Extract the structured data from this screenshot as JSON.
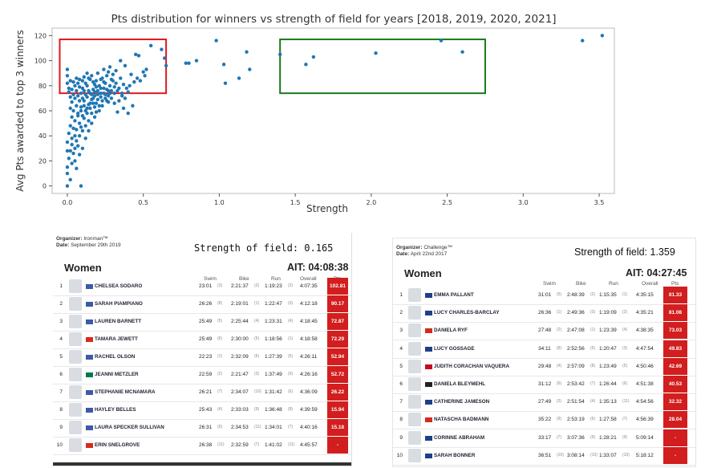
{
  "chart_data": {
    "type": "scatter",
    "title": "Pts distribution for winners vs strength of field for years [2018, 2019, 2020, 2021]",
    "xlabel": "Strength",
    "ylabel": "Avg Pts awarded to top 3 winners",
    "xlim": [
      -0.1,
      3.6
    ],
    "ylim": [
      -6,
      126
    ],
    "xticks": [
      "0.0",
      "0.5",
      "1.0",
      "1.5",
      "2.0",
      "2.5",
      "3.0",
      "3.5"
    ],
    "yticks": [
      "0",
      "20",
      "40",
      "60",
      "80",
      "100",
      "120"
    ],
    "grid": false,
    "point_color": "#1f77b4",
    "highlight_boxes": [
      {
        "color": "#e0191f",
        "x": [
          -0.05,
          0.65
        ],
        "y": [
          74,
          117
        ]
      },
      {
        "color": "#1a7a1a",
        "x": [
          1.4,
          2.75
        ],
        "y": [
          74,
          117
        ]
      }
    ],
    "points": [
      [
        0.55,
        112
      ],
      [
        0.62,
        109
      ],
      [
        0.64,
        102
      ],
      [
        0.65,
        96
      ],
      [
        0.45,
        105
      ],
      [
        0.47,
        104
      ],
      [
        0.5,
        91
      ],
      [
        0.52,
        93
      ],
      [
        0.42,
        89
      ],
      [
        0.46,
        86
      ],
      [
        0.39,
        78
      ],
      [
        0.4,
        75
      ],
      [
        0.36,
        72
      ],
      [
        0.37,
        62
      ],
      [
        0.31,
        66
      ],
      [
        0.33,
        59
      ],
      [
        0.38,
        96
      ],
      [
        0.35,
        100
      ],
      [
        0.32,
        92
      ],
      [
        0.28,
        95
      ],
      [
        0.26,
        88
      ],
      [
        0.24,
        93
      ],
      [
        0.2,
        90
      ],
      [
        0.23,
        86
      ],
      [
        0.19,
        84
      ],
      [
        0.18,
        81
      ],
      [
        0.15,
        85
      ],
      [
        0.13,
        80
      ],
      [
        0.12,
        82
      ],
      [
        0.11,
        76
      ],
      [
        0.1,
        78
      ],
      [
        0.09,
        74
      ],
      [
        0.08,
        79
      ],
      [
        0.07,
        72
      ],
      [
        0.06,
        76
      ],
      [
        0.05,
        70
      ],
      [
        0.04,
        73
      ],
      [
        0.03,
        67
      ],
      [
        0.02,
        71
      ],
      [
        0.01,
        75
      ],
      [
        0.0,
        82
      ],
      [
        0.0,
        88
      ],
      [
        0.0,
        93
      ],
      [
        0.01,
        78
      ],
      [
        0.02,
        62
      ],
      [
        0.03,
        55
      ],
      [
        0.02,
        48
      ],
      [
        0.01,
        42
      ],
      [
        0.0,
        35
      ],
      [
        0.0,
        28
      ],
      [
        0.01,
        22
      ],
      [
        0.0,
        15
      ],
      [
        0.0,
        10
      ],
      [
        0.02,
        5
      ],
      [
        0.0,
        0
      ],
      [
        0.09,
        0
      ],
      [
        0.04,
        60
      ],
      [
        0.05,
        52
      ],
      [
        0.06,
        45
      ],
      [
        0.07,
        58
      ],
      [
        0.08,
        50
      ],
      [
        0.09,
        63
      ],
      [
        0.1,
        56
      ],
      [
        0.11,
        68
      ],
      [
        0.12,
        60
      ],
      [
        0.13,
        71
      ],
      [
        0.14,
        65
      ],
      [
        0.15,
        74
      ],
      [
        0.16,
        69
      ],
      [
        0.17,
        77
      ],
      [
        0.18,
        72
      ],
      [
        0.2,
        76
      ],
      [
        0.21,
        80
      ],
      [
        0.22,
        74
      ],
      [
        0.24,
        78
      ],
      [
        0.25,
        82
      ],
      [
        0.27,
        76
      ],
      [
        0.28,
        80
      ],
      [
        0.3,
        84
      ],
      [
        0.31,
        79
      ],
      [
        0.29,
        70
      ],
      [
        0.26,
        68
      ],
      [
        0.23,
        64
      ],
      [
        0.21,
        60
      ],
      [
        0.19,
        66
      ],
      [
        0.16,
        58
      ],
      [
        0.14,
        52
      ],
      [
        0.12,
        48
      ],
      [
        0.1,
        44
      ],
      [
        0.08,
        40
      ],
      [
        0.06,
        36
      ],
      [
        0.05,
        30
      ],
      [
        0.04,
        26
      ],
      [
        0.03,
        38
      ],
      [
        0.07,
        32
      ],
      [
        0.09,
        47
      ],
      [
        0.11,
        54
      ],
      [
        0.13,
        62
      ],
      [
        0.15,
        66
      ],
      [
        0.17,
        70
      ],
      [
        0.18,
        63
      ],
      [
        0.2,
        69
      ],
      [
        0.22,
        71
      ],
      [
        0.25,
        73
      ],
      [
        0.27,
        67
      ],
      [
        0.34,
        78
      ],
      [
        0.29,
        85
      ],
      [
        0.32,
        82
      ],
      [
        0.35,
        86
      ],
      [
        0.3,
        89
      ],
      [
        0.27,
        91
      ],
      [
        0.24,
        83
      ],
      [
        0.22,
        85
      ],
      [
        0.19,
        79
      ],
      [
        0.17,
        83
      ],
      [
        0.16,
        88
      ],
      [
        0.14,
        86
      ],
      [
        0.13,
        90
      ],
      [
        0.11,
        87
      ],
      [
        0.1,
        84
      ],
      [
        0.08,
        85
      ],
      [
        0.07,
        82
      ],
      [
        0.06,
        86
      ],
      [
        0.05,
        80
      ],
      [
        0.04,
        83
      ],
      [
        0.03,
        77
      ],
      [
        0.02,
        84
      ],
      [
        0.06,
        64
      ],
      [
        0.08,
        68
      ],
      [
        0.1,
        70
      ],
      [
        0.12,
        73
      ],
      [
        0.14,
        76
      ],
      [
        0.16,
        73
      ],
      [
        0.18,
        75
      ],
      [
        0.2,
        73
      ],
      [
        0.22,
        78
      ],
      [
        0.24,
        74
      ],
      [
        0.26,
        77
      ],
      [
        0.28,
        74
      ],
      [
        0.4,
        58
      ],
      [
        0.43,
        64
      ],
      [
        0.41,
        80
      ],
      [
        0.44,
        83
      ],
      [
        0.37,
        81
      ],
      [
        0.48,
        84
      ],
      [
        0.51,
        88
      ],
      [
        0.34,
        68
      ],
      [
        0.36,
        74
      ],
      [
        0.38,
        70
      ],
      [
        0.07,
        56
      ],
      [
        0.09,
        60
      ],
      [
        0.11,
        64
      ],
      [
        0.13,
        58
      ],
      [
        0.15,
        62
      ],
      [
        0.17,
        66
      ],
      [
        0.04,
        46
      ],
      [
        0.05,
        40
      ],
      [
        0.03,
        33
      ],
      [
        0.02,
        28
      ],
      [
        0.05,
        20
      ],
      [
        0.06,
        14
      ],
      [
        0.03,
        18
      ],
      [
        0.08,
        25
      ],
      [
        0.1,
        30
      ],
      [
        0.12,
        38
      ],
      [
        0.14,
        44
      ],
      [
        0.16,
        50
      ],
      [
        0.18,
        55
      ],
      [
        0.19,
        59
      ],
      [
        0.21,
        64
      ],
      [
        0.23,
        68
      ],
      [
        0.25,
        70
      ],
      [
        0.27,
        72
      ],
      [
        0.29,
        76
      ],
      [
        0.31,
        74
      ],
      [
        0.33,
        76
      ],
      [
        0.8,
        98
      ],
      [
        0.78,
        98
      ],
      [
        0.85,
        100
      ],
      [
        0.98,
        116
      ],
      [
        1.03,
        97
      ],
      [
        1.04,
        82
      ],
      [
        1.13,
        86
      ],
      [
        1.18,
        107
      ],
      [
        1.2,
        93
      ],
      [
        1.4,
        105
      ],
      [
        1.57,
        97
      ],
      [
        1.62,
        103
      ],
      [
        2.03,
        106
      ],
      [
        2.46,
        116
      ],
      [
        2.6,
        107
      ],
      [
        3.39,
        116
      ],
      [
        3.52,
        120
      ]
    ]
  },
  "left_panel": {
    "organizer_label": "Organizer:",
    "organizer": "Ironman™",
    "date_label": "Date:",
    "date": "September 29th 2019",
    "strength": "Strength of field: 0.165",
    "division": "Women",
    "ait": "AIT: 04:08:38",
    "headers": [
      "Swim",
      "Bike",
      "Run",
      "Overall",
      "Pts"
    ],
    "rows": [
      {
        "rank": "1",
        "name": "CHELSEA SODARO",
        "swim": "23:01",
        "swim_r": "(3)",
        "bike": "2:21:37",
        "bike_r": "(2)",
        "run": "1:19:23",
        "run_r": "(2)",
        "overall": "4:07:35",
        "pts": "102.81",
        "flag": "us"
      },
      {
        "rank": "2",
        "name": "SARAH PIAMPIANO",
        "swim": "26:26",
        "swim_r": "(8)",
        "bike": "2:19:01",
        "bike_r": "(1)",
        "run": "1:22:47",
        "run_r": "(3)",
        "overall": "4:12:18",
        "pts": "90.17",
        "flag": "us"
      },
      {
        "rank": "3",
        "name": "LAUREN BARNETT",
        "swim": "25:49",
        "swim_r": "(5)",
        "bike": "2:25:44",
        "bike_r": "(4)",
        "run": "1:23:31",
        "run_r": "(4)",
        "overall": "4:18:45",
        "pts": "72.87",
        "flag": "us"
      },
      {
        "rank": "4",
        "name": "TAMARA JEWETT",
        "swim": "25:49",
        "swim_r": "(6)",
        "bike": "2:30:00",
        "bike_r": "(5)",
        "run": "1:18:56",
        "run_r": "(1)",
        "overall": "4:18:58",
        "pts": "72.29",
        "flag": "ca"
      },
      {
        "rank": "5",
        "name": "RACHEL OLSON",
        "swim": "22:23",
        "swim_r": "(1)",
        "bike": "2:32:09",
        "bike_r": "(6)",
        "run": "1:27:39",
        "run_r": "(5)",
        "overall": "4:26:11",
        "pts": "52.94",
        "flag": "us"
      },
      {
        "rank": "6",
        "name": "JEANNI METZLER",
        "swim": "22:59",
        "swim_r": "(2)",
        "bike": "2:21:47",
        "bike_r": "(3)",
        "run": "1:37:49",
        "run_r": "(9)",
        "overall": "4:26:16",
        "pts": "52.72",
        "flag": "za"
      },
      {
        "rank": "7",
        "name": "STEPHANIE MCNAMARA",
        "swim": "26:21",
        "swim_r": "(7)",
        "bike": "2:34:07",
        "bike_r": "(10)",
        "run": "1:31:42",
        "run_r": "(6)",
        "overall": "4:36:09",
        "pts": "26.22",
        "flag": "us"
      },
      {
        "rank": "8",
        "name": "HAYLEY BELLES",
        "swim": "25:43",
        "swim_r": "(4)",
        "bike": "2:33:03",
        "bike_r": "(9)",
        "run": "1:36:48",
        "run_r": "(8)",
        "overall": "4:39:59",
        "pts": "15.94",
        "flag": "us"
      },
      {
        "rank": "9",
        "name": "LAURA SPECKER SULLIVAN",
        "swim": "26:31",
        "swim_r": "(9)",
        "bike": "2:34:53",
        "bike_r": "(11)",
        "run": "1:34:01",
        "run_r": "(7)",
        "overall": "4:40:16",
        "pts": "15.18",
        "flag": "us"
      },
      {
        "rank": "10",
        "name": "ERIN SNELGROVE",
        "swim": "26:38",
        "swim_r": "(11)",
        "bike": "2:32:59",
        "bike_r": "(7)",
        "run": "1:41:02",
        "run_r": "(11)",
        "overall": "4:45:57",
        "pts": "-",
        "flag": "ca"
      }
    ]
  },
  "right_panel": {
    "organizer_label": "Organizer:",
    "organizer": "Challenge™",
    "date_label": "Date:",
    "date": "April 22nd 2017",
    "strength": "Strength of field:  1.359",
    "division": "Women",
    "ait": "AIT: 04:27:45",
    "headers": [
      "Swim",
      "Bike",
      "Run",
      "Overall",
      "Pts"
    ],
    "rows": [
      {
        "rank": "1",
        "name": "EMMA PALLANT",
        "swim": "31:01",
        "swim_r": "(5)",
        "bike": "2:48:39",
        "bike_r": "(2)",
        "run": "1:15:35",
        "run_r": "(1)",
        "overall": "4:35:15",
        "pts": "81.33",
        "flag": "gb"
      },
      {
        "rank": "2",
        "name": "LUCY CHARLES-BARCLAY",
        "swim": "26:36",
        "swim_r": "(1)",
        "bike": "2:49:36",
        "bike_r": "(3)",
        "run": "1:19:09",
        "run_r": "(2)",
        "overall": "4:35:21",
        "pts": "81.08",
        "flag": "gb"
      },
      {
        "rank": "3",
        "name": "DANIELA RYF",
        "swim": "27:48",
        "swim_r": "(2)",
        "bike": "2:47:08",
        "bike_r": "(1)",
        "run": "1:23:39",
        "run_r": "(4)",
        "overall": "4:38:35",
        "pts": "73.03",
        "flag": "ch"
      },
      {
        "rank": "4",
        "name": "LUCY GOSSAGE",
        "swim": "34:11",
        "swim_r": "(8)",
        "bike": "2:52:56",
        "bike_r": "(5)",
        "run": "1:20:47",
        "run_r": "(3)",
        "overall": "4:47:54",
        "pts": "49.83",
        "flag": "gb"
      },
      {
        "rank": "5",
        "name": "JUDITH CORACHAN VAQUERA",
        "swim": "29:48",
        "swim_r": "(4)",
        "bike": "2:57:09",
        "bike_r": "(8)",
        "run": "1:23:49",
        "run_r": "(5)",
        "overall": "4:50:46",
        "pts": "42.69",
        "flag": "es"
      },
      {
        "rank": "6",
        "name": "DANIELA BLEYMEHL",
        "swim": "31:12",
        "swim_r": "(6)",
        "bike": "2:53:42",
        "bike_r": "(7)",
        "run": "1:26:44",
        "run_r": "(6)",
        "overall": "4:51:38",
        "pts": "40.53",
        "flag": "de"
      },
      {
        "rank": "7",
        "name": "CATHERINE JAMESON",
        "swim": "27:49",
        "swim_r": "(3)",
        "bike": "2:51:54",
        "bike_r": "(4)",
        "run": "1:35:13",
        "run_r": "(11)",
        "overall": "4:54:56",
        "pts": "32.32",
        "flag": "gb"
      },
      {
        "rank": "8",
        "name": "NATASCHA BADMANN",
        "swim": "35:22",
        "swim_r": "(9)",
        "bike": "2:53:19",
        "bike_r": "(6)",
        "run": "1:27:58",
        "run_r": "(7)",
        "overall": "4:56:39",
        "pts": "28.04",
        "flag": "ch"
      },
      {
        "rank": "9",
        "name": "CORINNE ABRAHAM",
        "swim": "33:17",
        "swim_r": "(7)",
        "bike": "3:07:36",
        "bike_r": "(9)",
        "run": "1:28:21",
        "run_r": "(9)",
        "overall": "5:09:14",
        "pts": "-",
        "flag": "gb"
      },
      {
        "rank": "10",
        "name": "SARAH BONNER",
        "swim": "36:51",
        "swim_r": "(10)",
        "bike": "3:08:14",
        "bike_r": "(10)",
        "run": "1:33:07",
        "run_r": "(10)",
        "overall": "5:18:12",
        "pts": "-",
        "flag": "gb"
      }
    ]
  },
  "flag_colors": {
    "us": "#3c5aa6",
    "ca": "#d52b1e",
    "za": "#007a4d",
    "gb": "#1e3f8a",
    "ch": "#d52b1e",
    "es": "#c60b1e",
    "de": "#222222"
  }
}
